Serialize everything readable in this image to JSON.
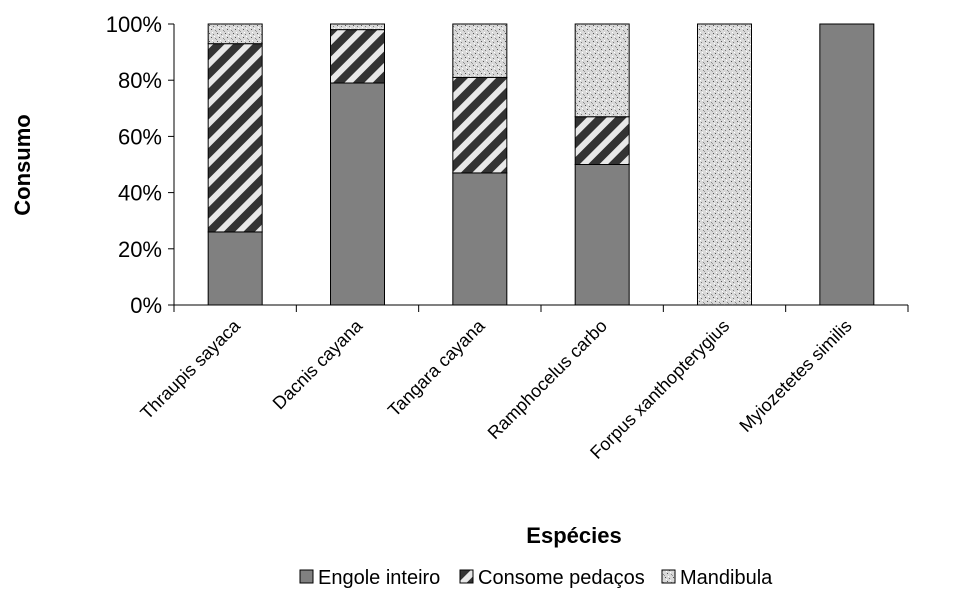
{
  "chart_data": {
    "type": "bar",
    "stacked": true,
    "percent": true,
    "xlabel": "Espécies",
    "ylabel": "Consumo",
    "ylim": [
      0,
      100
    ],
    "yticks": [
      "0%",
      "20%",
      "40%",
      "60%",
      "80%",
      "100%"
    ],
    "categories": [
      "Thraupis sayaca",
      "Dacnis cayana",
      "Tangara cayana",
      "Ramphocelus carbo",
      "Forpus xanthopterygius",
      "Myiozetetes similis"
    ],
    "series": [
      {
        "name": "Engole inteiro",
        "values": [
          26,
          79,
          47,
          50,
          0,
          100
        ],
        "color": "#808080",
        "pattern": "solid"
      },
      {
        "name": "Consome pedaços",
        "values": [
          67,
          19,
          34,
          17,
          0,
          0
        ],
        "color": "#333333",
        "pattern": "diagonal-stripes"
      },
      {
        "name": "Mandibula",
        "values": [
          7,
          2,
          19,
          33,
          100,
          0
        ],
        "color": "#d6d6d6",
        "pattern": "speckled"
      }
    ],
    "legend_position": "bottom",
    "grid": false
  }
}
